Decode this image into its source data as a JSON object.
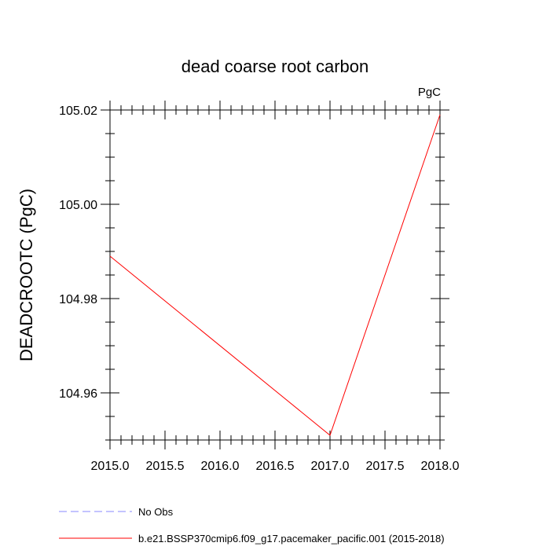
{
  "chart_data": {
    "type": "line",
    "title": "dead coarse root carbon",
    "units": "PgC",
    "ylabel": "DEADCROOTC  (PgC)",
    "xlabel": "",
    "xlim": [
      2015.0,
      2018.0
    ],
    "ylim": [
      104.95,
      105.02
    ],
    "x_ticks": [
      2015.0,
      2015.5,
      2016.0,
      2016.5,
      2017.0,
      2017.5,
      2018.0
    ],
    "x_tick_labels": [
      "2015.0",
      "2015.5",
      "2016.0",
      "2016.5",
      "2017.0",
      "2017.5",
      "2018.0"
    ],
    "y_ticks": [
      104.96,
      104.98,
      105.0,
      105.02
    ],
    "y_tick_labels": [
      "104.96",
      "104.98",
      "105.00",
      "105.02"
    ],
    "grid": false,
    "legend_position": "bottom",
    "series": [
      {
        "name": "No Obs",
        "color": "#8a8aff",
        "dash": "dashed",
        "x": [],
        "values": []
      },
      {
        "name": "b.e21.BSSP370cmip6.f09_g17.pacemaker_pacific.001 (2015-2018)",
        "color": "#ff0000",
        "dash": "solid",
        "x": [
          2015.0,
          2017.0,
          2018.0
        ],
        "values": [
          104.989,
          104.951,
          105.019
        ]
      }
    ]
  }
}
